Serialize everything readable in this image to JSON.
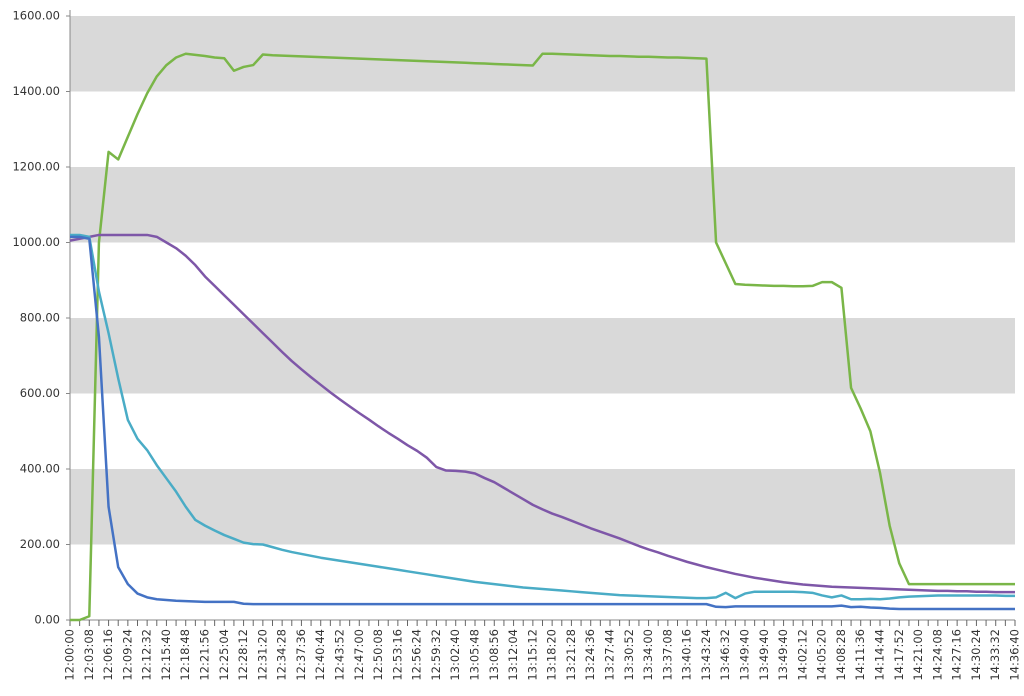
{
  "chart_data": {
    "type": "line",
    "categories": [
      "12:00:00",
      null,
      "12:03:08",
      null,
      "12:06:16",
      null,
      "12:09:24",
      null,
      "12:12:32",
      null,
      "12:15:40",
      null,
      "12:18:48",
      null,
      "12:21:56",
      null,
      "12:25:04",
      null,
      "12:28:12",
      null,
      "12:31:20",
      null,
      "12:34:28",
      null,
      "12:37:36",
      null,
      "12:40:44",
      null,
      "12:43:52",
      null,
      "12:47:00",
      null,
      "12:50:08",
      null,
      "12:53:16",
      null,
      "12:56:24",
      null,
      "12:59:32",
      null,
      "13:02:40",
      null,
      "13:05:48",
      null,
      "13:08:56",
      null,
      "13:12:04",
      null,
      "13:15:12",
      null,
      "13:18:20",
      null,
      "13:21:28",
      null,
      "13:24:36",
      null,
      "13:27:44",
      null,
      "13:30:52",
      null,
      "13:34:00",
      null,
      "13:37:08",
      null,
      "13:40:16",
      null,
      "13:43:24",
      null,
      "13:46:32",
      null,
      "13:49:40",
      null,
      "13:49:40",
      null,
      "13:49:40",
      null,
      "14:02:12",
      null,
      "14:05:20",
      null,
      "14:08:28",
      null,
      "14:11:36",
      null,
      "14:14:44",
      null,
      "14:17:52",
      null,
      "14:21:00",
      null,
      "14:24:08",
      null,
      "14:27:16",
      null,
      "14:30:24",
      null,
      "14:33:32",
      null,
      "14:36:40"
    ],
    "series": [
      {
        "color": "#7ab648",
        "values": [
          0,
          0,
          10,
          1000,
          1240,
          1220,
          1280,
          1340,
          1395,
          1440,
          1470,
          1490,
          1500,
          1497,
          1494,
          1490,
          1488,
          1455,
          1465,
          1470,
          1498,
          1496,
          1495,
          1494,
          1493,
          1492,
          1491,
          1490,
          1489,
          1488,
          1487,
          1486,
          1485,
          1484,
          1483,
          1482,
          1481,
          1480,
          1479,
          1478,
          1477,
          1476,
          1475,
          1474,
          1473,
          1472,
          1471,
          1470,
          1469,
          1500,
          1500,
          1499,
          1498,
          1497,
          1496,
          1495,
          1494,
          1494,
          1493,
          1492,
          1492,
          1491,
          1490,
          1490,
          1489,
          1488,
          1487,
          1000,
          945,
          890,
          888,
          887,
          886,
          885,
          885,
          884,
          884,
          885,
          895,
          895,
          880,
          615,
          560,
          500,
          390,
          250,
          150,
          95,
          95,
          95,
          95,
          95,
          95,
          95,
          95,
          95,
          95,
          95,
          95
        ]
      },
      {
        "color": "#7e57a8",
        "values": [
          1005,
          1010,
          1015,
          1020,
          1020,
          1020,
          1020,
          1020,
          1020,
          1015,
          1000,
          985,
          965,
          940,
          910,
          885,
          860,
          835,
          810,
          785,
          760,
          735,
          710,
          686,
          664,
          643,
          623,
          603,
          584,
          566,
          548,
          531,
          513,
          496,
          480,
          463,
          448,
          430,
          405,
          396,
          395,
          393,
          388,
          376,
          365,
          350,
          335,
          320,
          305,
          293,
          282,
          273,
          263,
          253,
          243,
          234,
          225,
          216,
          206,
          196,
          187,
          179,
          170,
          162,
          154,
          147,
          140,
          134,
          128,
          122,
          117,
          112,
          108,
          104,
          100,
          97,
          94,
          92,
          90,
          88,
          87,
          86,
          85,
          84,
          83,
          82,
          81,
          80,
          79,
          78,
          77,
          77,
          76,
          76,
          75,
          75,
          74,
          74,
          74
        ]
      },
      {
        "color": "#4aacc6",
        "values": [
          1020,
          1020,
          1015,
          870,
          760,
          640,
          530,
          480,
          450,
          410,
          375,
          340,
          300,
          265,
          250,
          237,
          225,
          215,
          205,
          201,
          200,
          193,
          186,
          180,
          175,
          170,
          165,
          161,
          157,
          153,
          149,
          145,
          141,
          137,
          133,
          129,
          125,
          121,
          117,
          113,
          109,
          105,
          101,
          98,
          95,
          92,
          89,
          86,
          84,
          82,
          80,
          78,
          76,
          74,
          72,
          70,
          68,
          66,
          65,
          64,
          63,
          62,
          61,
          60,
          59,
          58,
          58,
          60,
          72,
          58,
          70,
          75,
          75,
          75,
          75,
          75,
          74,
          72,
          65,
          60,
          65,
          55,
          55,
          56,
          55,
          57,
          60,
          62,
          63,
          64,
          65,
          65,
          65,
          65,
          65,
          65,
          65,
          64,
          64
        ]
      },
      {
        "color": "#4472c4",
        "values": [
          1015,
          1015,
          1010,
          750,
          300,
          140,
          95,
          70,
          60,
          55,
          53,
          51,
          50,
          49,
          48,
          48,
          48,
          48,
          43,
          42,
          42,
          42,
          42,
          42,
          42,
          42,
          42,
          42,
          42,
          42,
          42,
          42,
          42,
          42,
          42,
          42,
          42,
          42,
          42,
          42,
          42,
          42,
          42,
          42,
          42,
          42,
          42,
          42,
          42,
          42,
          42,
          42,
          42,
          42,
          42,
          42,
          42,
          42,
          42,
          42,
          42,
          42,
          42,
          42,
          42,
          42,
          42,
          35,
          34,
          36,
          36,
          36,
          36,
          36,
          36,
          36,
          36,
          36,
          36,
          36,
          38,
          34,
          35,
          33,
          32,
          30,
          29,
          29,
          29,
          29,
          29,
          29,
          29,
          29,
          29,
          29,
          29,
          29,
          29
        ]
      }
    ],
    "ylim": [
      0,
      1600
    ],
    "yticks": [
      {
        "value": 0,
        "label": "0.00"
      },
      {
        "value": 200,
        "label": "200.00"
      },
      {
        "value": 400,
        "label": "400.00"
      },
      {
        "value": 600,
        "label": "600.00"
      },
      {
        "value": 800,
        "label": "800.00"
      },
      {
        "value": 1000,
        "label": "1000.00"
      },
      {
        "value": 1200,
        "label": "1200.00"
      },
      {
        "value": 1400,
        "label": "1400.00"
      },
      {
        "value": 1600,
        "label": "1600.00"
      }
    ],
    "grid": "bands",
    "band_color": "#d9d9d9"
  }
}
